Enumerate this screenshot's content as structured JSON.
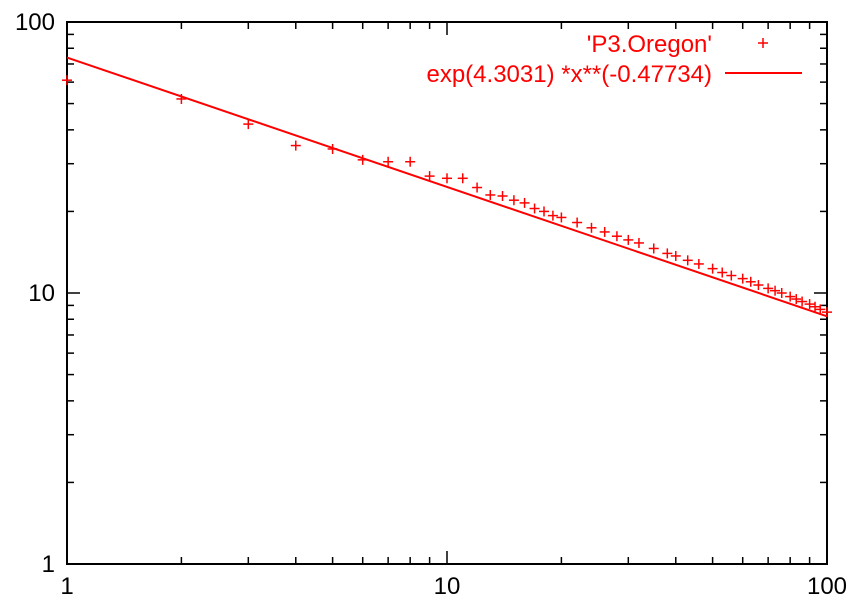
{
  "chart_data": {
    "type": "scatter",
    "xscale": "log",
    "yscale": "log",
    "xlim": [
      1,
      100
    ],
    "ylim": [
      1,
      100
    ],
    "grid": false,
    "legend_position": "top-right",
    "x_ticks": [
      "1",
      "10",
      "100"
    ],
    "y_ticks": [
      "1",
      "10",
      "100"
    ],
    "title": "",
    "xlabel": "",
    "ylabel": "",
    "series": [
      {
        "name": "'P3.Oregon'",
        "type": "scatter",
        "marker": "plus",
        "color": "#ff0000",
        "x": [
          1,
          2,
          3,
          4,
          5,
          6,
          7,
          8,
          9,
          10,
          11,
          12,
          13,
          14,
          15,
          16,
          17,
          18,
          19,
          20,
          22,
          24,
          26,
          28,
          30,
          32,
          35,
          38,
          40,
          43,
          46,
          50,
          53,
          56,
          60,
          63,
          66,
          70,
          73,
          76,
          80,
          83,
          86,
          90,
          93,
          96,
          100
        ],
        "y": [
          61,
          52,
          42,
          35,
          34,
          31,
          30.5,
          30.5,
          27,
          26.5,
          26.5,
          24.5,
          23,
          22.8,
          22,
          21.5,
          20.5,
          20,
          19.3,
          19,
          18.2,
          17.4,
          16.8,
          16.2,
          15.7,
          15.3,
          14.6,
          14.0,
          13.7,
          13.2,
          12.8,
          12.3,
          11.9,
          11.6,
          11.3,
          11.0,
          10.7,
          10.4,
          10.2,
          10.0,
          9.7,
          9.5,
          9.3,
          9.1,
          8.9,
          8.7,
          8.5
        ]
      },
      {
        "name": "exp(4.3031) *x**(-0.47734)",
        "type": "line",
        "color": "#ff0000",
        "fit": {
          "a": 4.3031,
          "b": -0.47734
        }
      }
    ]
  }
}
